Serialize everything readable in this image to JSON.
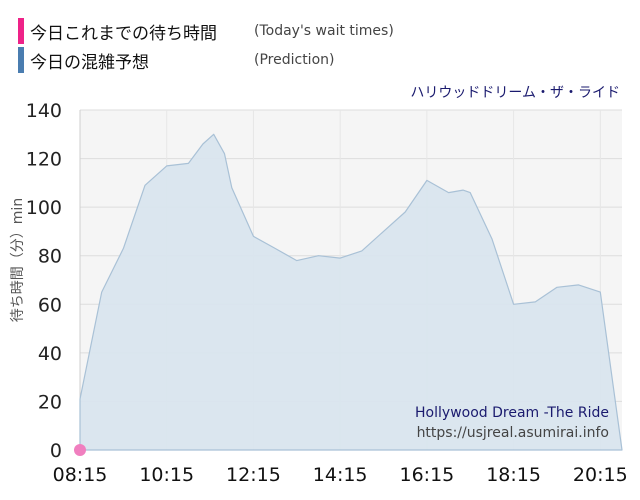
{
  "legend": {
    "items": [
      {
        "label": "今日これまでの待ち時間",
        "english": "(Today's wait times)",
        "color": "#ee2288"
      },
      {
        "label": "今日の混雑予想",
        "english": "(Prediction)",
        "color": "#4a7db0"
      }
    ]
  },
  "annotations": {
    "top_right": "ハリウッドドリーム・ザ・ライド",
    "bottom_title": "Hollywood Dream -The Ride",
    "bottom_url": "https://usjreal.asumirai.info"
  },
  "chart_data": {
    "type": "area",
    "title": "ハリウッドドリーム・ザ・ライド",
    "ylabel": "待ち時間（分）min",
    "xlabel": "",
    "ylim": [
      0,
      140
    ],
    "yticks": [
      0,
      20,
      40,
      60,
      80,
      100,
      120,
      140
    ],
    "xticks": [
      "08:15",
      "10:15",
      "12:15",
      "14:15",
      "16:15",
      "18:15",
      "20:15"
    ],
    "grid": true,
    "series": [
      {
        "name": "今日の混雑予想",
        "fill": "#d8e4ee",
        "stroke": "#a9c1d6",
        "x": [
          "08:15",
          "08:45",
          "09:15",
          "09:45",
          "10:15",
          "10:45",
          "11:05",
          "11:20",
          "11:35",
          "11:45",
          "12:15",
          "12:45",
          "13:15",
          "13:45",
          "14:15",
          "14:45",
          "15:15",
          "15:45",
          "16:15",
          "16:45",
          "17:05",
          "17:15",
          "17:45",
          "18:15",
          "18:45",
          "19:15",
          "19:45",
          "20:15",
          "20:45"
        ],
        "values": [
          21,
          65,
          83,
          109,
          117,
          118,
          126,
          130,
          122,
          108,
          88,
          83,
          78,
          80,
          79,
          82,
          90,
          98,
          111,
          106,
          107,
          106,
          87,
          60,
          61,
          67,
          68,
          65,
          0
        ]
      },
      {
        "name": "今日これまでの待ち時間",
        "color": "#f07fbf",
        "x": [
          "08:15"
        ],
        "values": [
          0
        ]
      }
    ]
  }
}
